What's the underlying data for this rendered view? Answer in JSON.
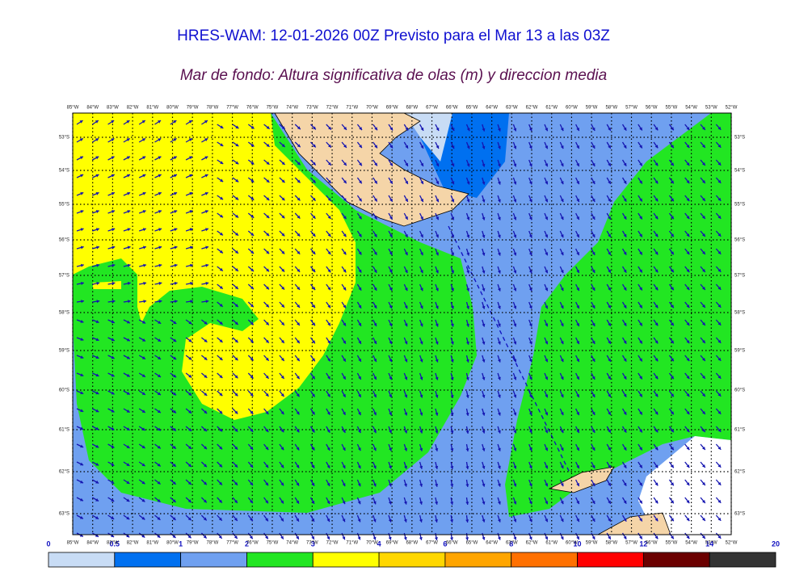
{
  "header": {
    "title": "HRES-WAM: 12-01-2026 00Z Previsto para el Mar 13 a las 03Z",
    "subtitle": "Mar de fondo: Altura significativa de olas (m) y direccion media"
  },
  "map": {
    "lon_labels": [
      "85°W",
      "84°W",
      "83°W",
      "82°W",
      "81°W",
      "80°W",
      "79°W",
      "78°W",
      "77°W",
      "76°W",
      "75°W",
      "74°W",
      "73°W",
      "72°W",
      "71°W",
      "70°W",
      "69°W",
      "68°W",
      "67°W",
      "66°W",
      "65°W",
      "64°W",
      "63°W",
      "62°W",
      "61°W",
      "60°W",
      "59°W",
      "58°W",
      "57°W",
      "56°W",
      "55°W",
      "54°W",
      "53°W",
      "52°W"
    ],
    "lat_labels": [
      "53°S",
      "54°S",
      "55°S",
      "56°S",
      "57°S",
      "58°S",
      "59°S",
      "60°S",
      "61°S",
      "62°S",
      "63°S"
    ]
  },
  "colorbar": {
    "ticks": [
      0,
      0.5,
      1,
      2,
      3,
      4,
      6,
      8,
      10,
      12,
      14,
      20
    ],
    "colors": [
      "#c8dcf5",
      "#0070f0",
      "#6fa0f0",
      "#22e622",
      "#ffff00",
      "#ffd700",
      "#ffa500",
      "#ff7000",
      "#ff0000",
      "#6b0000",
      "#333333"
    ]
  }
}
